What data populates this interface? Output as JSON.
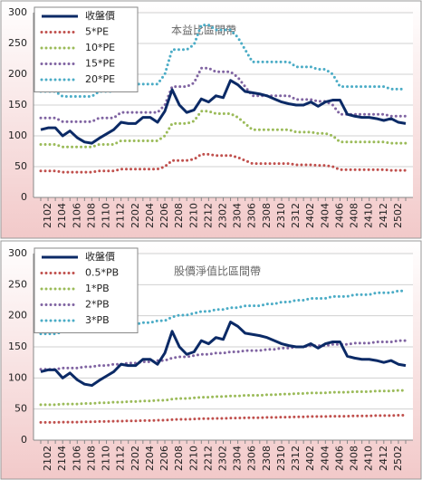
{
  "chart_data": [
    {
      "type": "line",
      "title": "本益比區間帶",
      "categories": [
        null,
        "2102",
        null,
        "2104",
        null,
        "2106",
        null,
        "2108",
        null,
        "2110",
        null,
        "2112",
        null,
        "2202",
        null,
        "2204",
        null,
        "2206",
        null,
        "2208",
        null,
        "2210",
        null,
        "2212",
        null,
        "2302",
        null,
        "2304",
        null,
        "2306",
        null,
        "2308",
        null,
        "2310",
        null,
        "2312",
        null,
        "2402",
        null,
        "2404",
        null,
        "2406",
        null,
        "2408",
        null,
        "2410",
        null,
        "2412",
        null,
        "2502",
        null
      ],
      "ylim": [
        0,
        300
      ],
      "yticks": [
        0,
        50,
        100,
        150,
        200,
        250,
        300
      ],
      "grid": true,
      "legend": "upper left",
      "series": [
        {
          "name": "收盤價",
          "color": "#0b2a66",
          "values": [
            110,
            113,
            113,
            100,
            108,
            97,
            90,
            88,
            96,
            103,
            110,
            122,
            120,
            120,
            130,
            130,
            122,
            140,
            175,
            150,
            138,
            142,
            160,
            155,
            165,
            162,
            190,
            183,
            172,
            170,
            168,
            165,
            160,
            155,
            152,
            150,
            150,
            155,
            148,
            155,
            158,
            158,
            135,
            132,
            130,
            130,
            128,
            125,
            128,
            122,
            120
          ]
        },
        {
          "name": "5*PE",
          "color": "#c0504d",
          "values": [
            43,
            43,
            43,
            41,
            41,
            41,
            41,
            41,
            43,
            43,
            43,
            46,
            46,
            46,
            46,
            46,
            46,
            50,
            60,
            60,
            60,
            62,
            70,
            70,
            68,
            68,
            68,
            65,
            60,
            55,
            55,
            55,
            55,
            55,
            55,
            53,
            53,
            53,
            52,
            52,
            50,
            45,
            45,
            45,
            45,
            45,
            45,
            45,
            44,
            44,
            44
          ]
        },
        {
          "name": "10*PE",
          "color": "#9bbb59",
          "values": [
            86,
            86,
            86,
            82,
            82,
            82,
            82,
            82,
            86,
            86,
            86,
            92,
            92,
            92,
            92,
            92,
            92,
            100,
            120,
            120,
            120,
            124,
            140,
            140,
            136,
            136,
            136,
            130,
            120,
            110,
            110,
            110,
            110,
            110,
            110,
            106,
            106,
            106,
            104,
            104,
            100,
            90,
            90,
            90,
            90,
            90,
            90,
            90,
            88,
            88,
            88
          ]
        },
        {
          "name": "15*PE",
          "color": "#8064a2",
          "values": [
            129,
            129,
            129,
            123,
            123,
            123,
            123,
            123,
            129,
            129,
            129,
            138,
            138,
            138,
            138,
            138,
            138,
            150,
            180,
            180,
            180,
            186,
            210,
            210,
            204,
            204,
            204,
            195,
            180,
            165,
            165,
            165,
            165,
            165,
            165,
            159,
            159,
            159,
            156,
            156,
            150,
            135,
            135,
            135,
            135,
            135,
            135,
            135,
            132,
            132,
            132
          ]
        },
        {
          "name": "20*PE",
          "color": "#4bacc6",
          "values": [
            172,
            172,
            172,
            164,
            164,
            164,
            164,
            164,
            172,
            172,
            172,
            184,
            184,
            184,
            184,
            184,
            184,
            200,
            240,
            240,
            240,
            248,
            280,
            280,
            272,
            272,
            272,
            260,
            240,
            220,
            220,
            220,
            220,
            220,
            220,
            212,
            212,
            212,
            208,
            208,
            200,
            180,
            180,
            180,
            180,
            180,
            180,
            180,
            176,
            176,
            176
          ]
        }
      ]
    },
    {
      "type": "line",
      "title": "股價淨值比區間帶",
      "categories": [
        null,
        "2102",
        null,
        "2104",
        null,
        "2106",
        null,
        "2108",
        null,
        "2110",
        null,
        "2112",
        null,
        "2202",
        null,
        "2204",
        null,
        "2206",
        null,
        "2208",
        null,
        "2210",
        null,
        "2212",
        null,
        "2302",
        null,
        "2304",
        null,
        "2306",
        null,
        "2308",
        null,
        "2310",
        null,
        "2312",
        null,
        "2402",
        null,
        "2404",
        null,
        "2406",
        null,
        "2408",
        null,
        "2410",
        null,
        "2412",
        null,
        "2502",
        null
      ],
      "ylim": [
        0,
        300
      ],
      "yticks": [
        0,
        50,
        100,
        150,
        200,
        250,
        300
      ],
      "grid": true,
      "legend": "upper left",
      "series": [
        {
          "name": "收盤價",
          "color": "#0b2a66",
          "values": [
            110,
            113,
            113,
            100,
            108,
            97,
            90,
            88,
            96,
            103,
            110,
            122,
            120,
            120,
            130,
            130,
            122,
            140,
            175,
            150,
            138,
            142,
            160,
            155,
            165,
            162,
            190,
            183,
            172,
            170,
            168,
            165,
            160,
            155,
            152,
            150,
            150,
            155,
            148,
            155,
            158,
            158,
            135,
            132,
            130,
            130,
            128,
            125,
            128,
            122,
            120
          ]
        },
        {
          "name": "0.5*PB",
          "color": "#c0504d",
          "values": [
            28.5,
            28.5,
            28.5,
            29,
            29,
            29,
            29.5,
            29.5,
            30,
            30,
            30.5,
            30.5,
            31,
            31,
            31.5,
            31.5,
            32,
            32,
            33,
            33.5,
            33.5,
            34,
            34.5,
            34.5,
            35,
            35,
            35.5,
            35.5,
            36,
            36,
            36,
            36.5,
            36.5,
            37,
            37,
            37.5,
            37.5,
            38,
            38,
            38,
            38.5,
            38.5,
            38.5,
            39,
            39,
            39,
            39.5,
            39.5,
            39.5,
            40,
            40
          ]
        },
        {
          "name": "1*PB",
          "color": "#9bbb59",
          "values": [
            57,
            57,
            57,
            58,
            58,
            58,
            59,
            59,
            60,
            60,
            61,
            61,
            62,
            62,
            63,
            63,
            64,
            64,
            66,
            67,
            67,
            68,
            69,
            69,
            70,
            70,
            71,
            71,
            72,
            72,
            72,
            73,
            73,
            74,
            74,
            75,
            75,
            76,
            76,
            76,
            77,
            77,
            77,
            78,
            78,
            78,
            79,
            79,
            79,
            80,
            80
          ]
        },
        {
          "name": "2*PB",
          "color": "#8064a2",
          "values": [
            114,
            114,
            114,
            116,
            116,
            116,
            118,
            118,
            120,
            120,
            122,
            122,
            124,
            124,
            126,
            126,
            128,
            128,
            132,
            134,
            134,
            136,
            138,
            138,
            140,
            140,
            142,
            142,
            144,
            144,
            144,
            146,
            146,
            148,
            148,
            150,
            150,
            152,
            152,
            152,
            154,
            154,
            154,
            156,
            156,
            156,
            158,
            158,
            158,
            160,
            160
          ]
        },
        {
          "name": "3*PB",
          "color": "#4bacc6",
          "values": [
            171,
            171,
            171,
            174,
            174,
            174,
            177,
            177,
            180,
            180,
            183,
            183,
            186,
            186,
            189,
            189,
            192,
            192,
            198,
            201,
            201,
            204,
            207,
            207,
            210,
            210,
            213,
            213,
            216,
            216,
            216,
            219,
            219,
            222,
            222,
            225,
            225,
            228,
            228,
            228,
            231,
            231,
            231,
            234,
            234,
            234,
            237,
            237,
            237,
            240,
            240
          ]
        }
      ]
    }
  ]
}
